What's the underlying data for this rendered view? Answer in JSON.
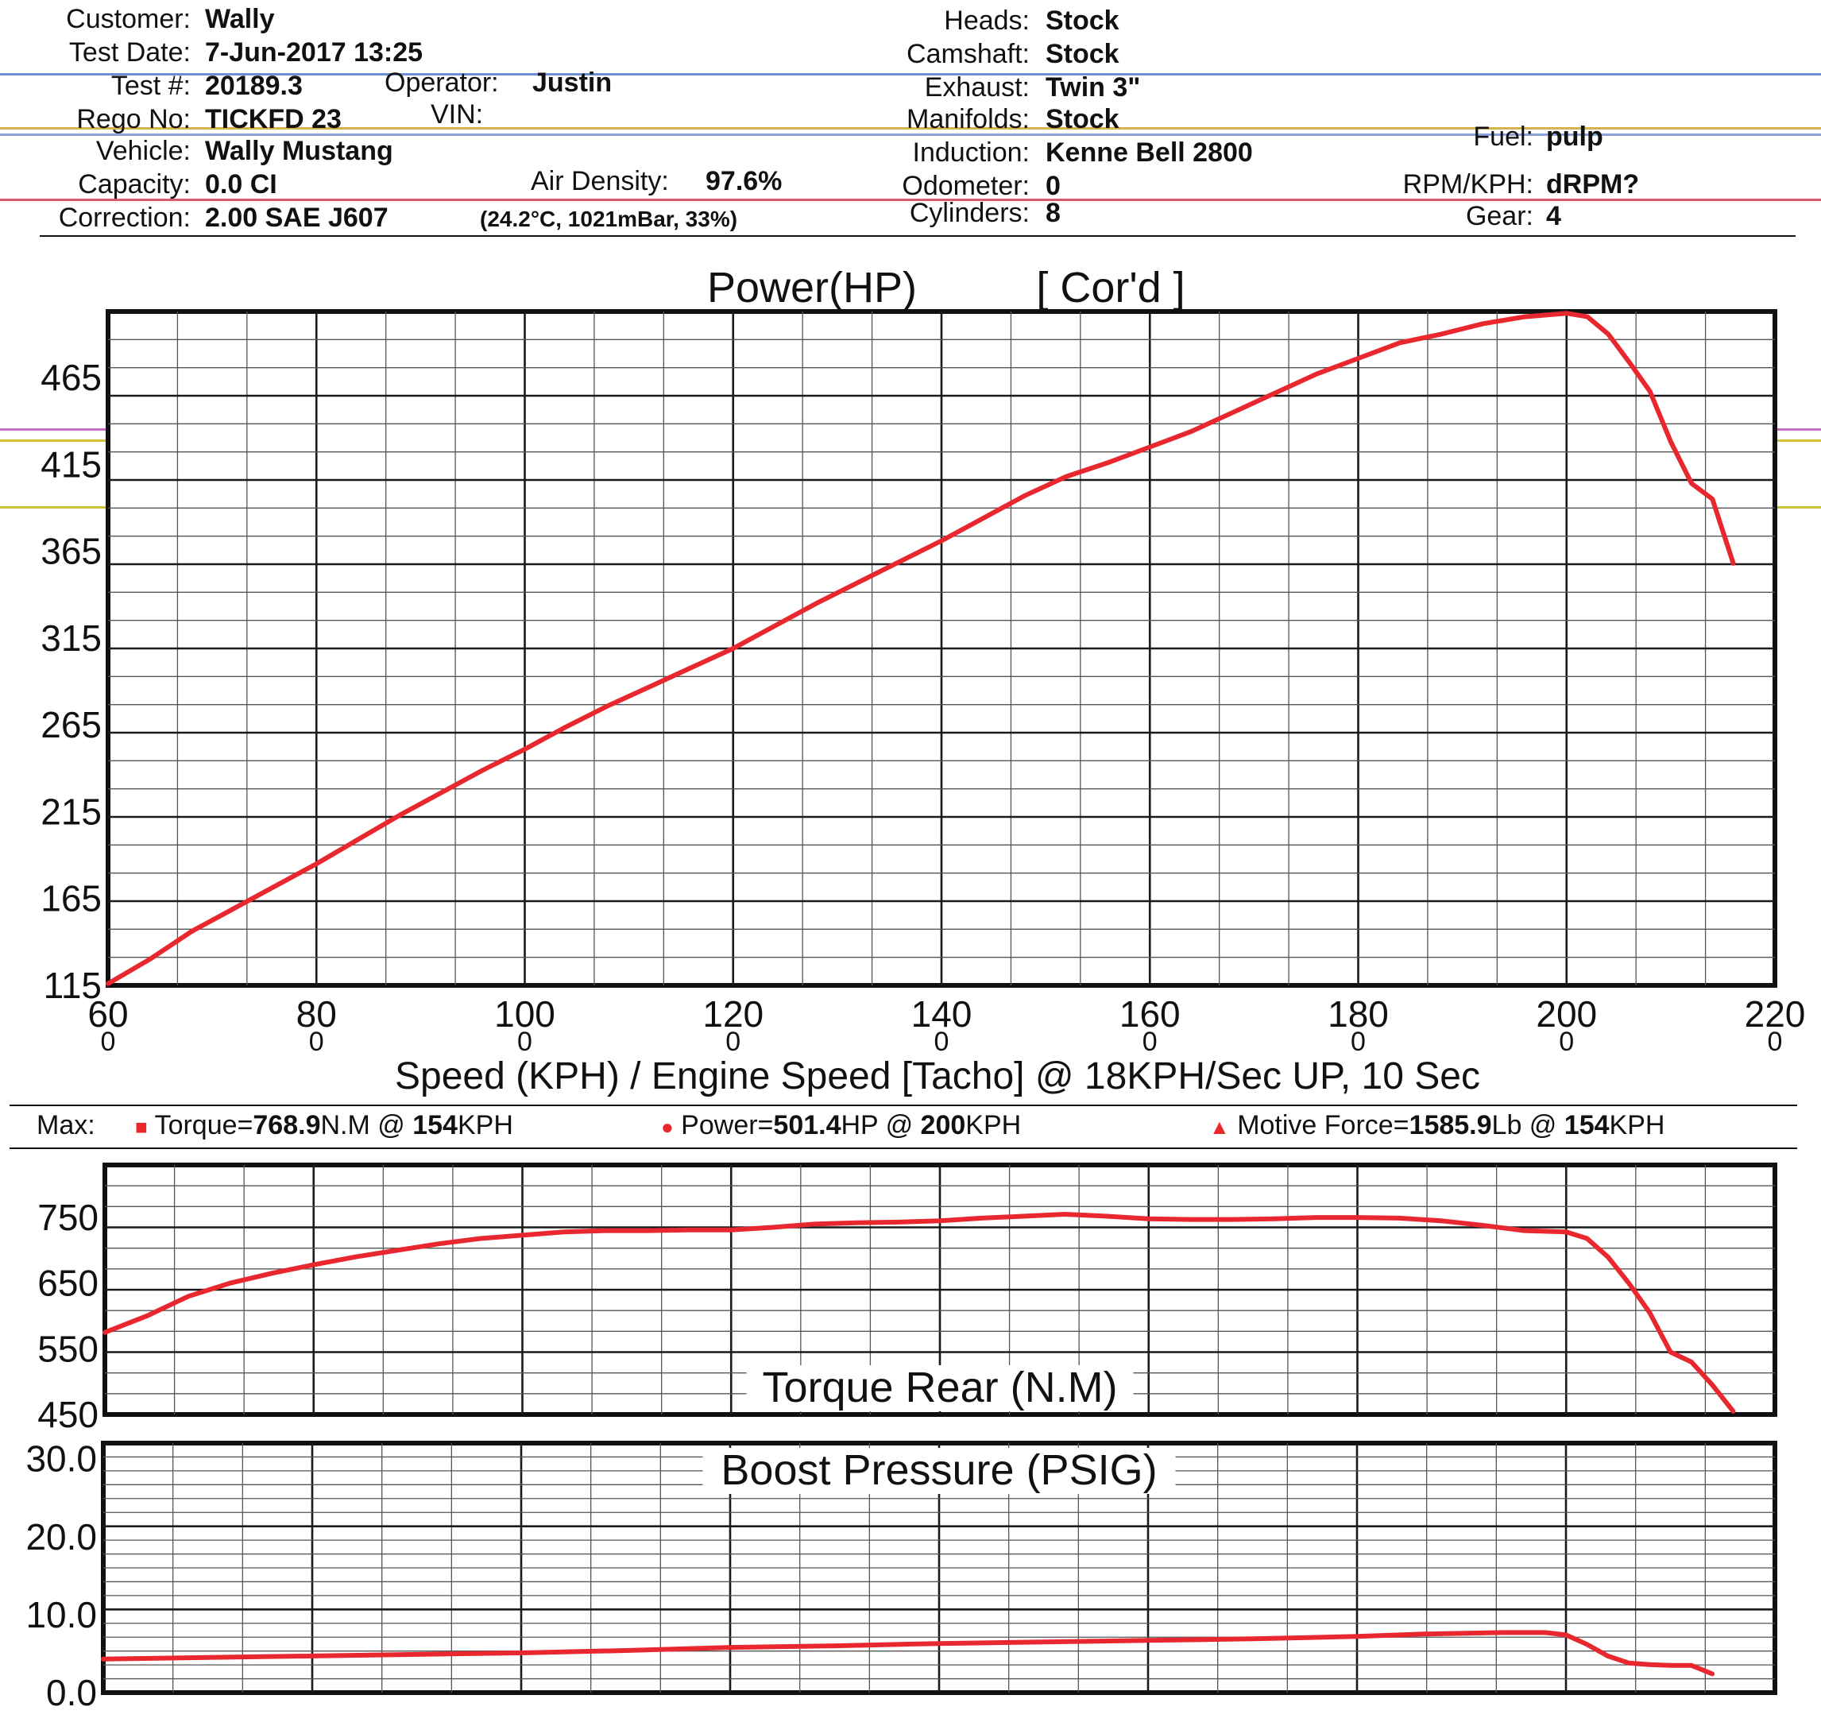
{
  "colors": {
    "curve": "#e8282e",
    "grid_major": "#1a1a1a",
    "grid_minor": "#555555",
    "frame": "#111111",
    "paper": "#ffffff"
  },
  "header": {
    "customer_label": "Customer:",
    "customer": "Wally",
    "test_date_label": "Test Date:",
    "test_date": "7-Jun-2017 13:25",
    "test_no_label": "Test #:",
    "test_no": "20189.3",
    "operator_label": "Operator:",
    "operator": "Justin",
    "rego_label": "Rego No:",
    "rego": "TICKFD 23",
    "vin_label": "VIN:",
    "vehicle_label": "Vehicle:",
    "vehicle": "Wally Mustang",
    "capacity_label": "Capacity:",
    "capacity": "0.0 CI",
    "air_density_label": "Air Density:",
    "air_density": "97.6%",
    "correction_label": "Correction:",
    "correction": "2.00 SAE J607",
    "conditions": "(24.2°C, 1021mBar, 33%)",
    "heads_label": "Heads:",
    "heads": "Stock",
    "camshaft_label": "Camshaft:",
    "camshaft": "Stock",
    "exhaust_label": "Exhaust:",
    "exhaust": "Twin 3\"",
    "manifolds_label": "Manifolds:",
    "manifolds": "Stock",
    "induction_label": "Induction:",
    "induction": "Kenne Bell 2800",
    "odometer_label": "Odometer:",
    "odometer": "0",
    "cylinders_label": "Cylinders:",
    "cylinders": "8",
    "fuel_label": "Fuel:",
    "fuel": "pulp",
    "rpm_label": "RPM/KPH:",
    "rpm": "dRPM?",
    "gear_label": "Gear:",
    "gear": "4"
  },
  "x_axis_label": "Speed (KPH) / Engine Speed [Tacho] @ 18KPH/Sec UP, 10 Sec",
  "max_line": {
    "label": "Max:",
    "torque": {
      "prefix": "Torque=",
      "value": "768.9",
      "unit": "N.M @",
      "at": "154",
      "at_unit": "KPH"
    },
    "power": {
      "prefix": "Power=",
      "value": "501.4",
      "unit": "HP @",
      "at": "200",
      "at_unit": "KPH"
    },
    "force": {
      "prefix": "Motive Force=",
      "value": "1585.9",
      "unit": "Lb @",
      "at": "154",
      "at_unit": "KPH"
    }
  },
  "chart_data": [
    {
      "type": "line",
      "title": "Power(HP)",
      "subtitle": "[ Cor'd ]",
      "xlim": [
        60,
        220
      ],
      "ylim": [
        115,
        503
      ],
      "x_ticks": [
        60,
        80,
        100,
        120,
        140,
        160,
        180,
        200,
        220
      ],
      "x_sub_ticks": [
        "0",
        "0",
        "0",
        "0",
        "0",
        "0",
        "0",
        "0",
        "0"
      ],
      "y_ticks": [
        "115",
        "165",
        "215",
        "265",
        "315",
        "365",
        "415",
        "465"
      ],
      "y_tick_values": [
        115,
        165,
        215,
        265,
        315,
        365,
        415,
        465
      ],
      "series": [
        {
          "x": [
            60,
            64,
            68,
            72,
            76,
            80,
            84,
            88,
            92,
            96,
            100,
            104,
            108,
            112,
            116,
            120,
            124,
            128,
            132,
            136,
            140,
            144,
            148,
            152,
            156,
            160,
            164,
            168,
            172,
            176,
            180,
            184,
            188,
            192,
            196,
            200,
            202,
            204,
            206,
            208,
            210,
            212,
            214,
            216
          ],
          "y": [
            116,
            130,
            146,
            159,
            172,
            185,
            199,
            213,
            226,
            239,
            251,
            264,
            276,
            287,
            298,
            309,
            322,
            335,
            347,
            359,
            371,
            384,
            397,
            408,
            416,
            425,
            434,
            445,
            456,
            467,
            476,
            485,
            490,
            496,
            500,
            502,
            500,
            490,
            474,
            457,
            428,
            404,
            395,
            358
          ]
        }
      ]
    },
    {
      "type": "line",
      "title": "Torque Rear (N.M)",
      "xlim": [
        60,
        220
      ],
      "ylim": [
        450,
        830
      ],
      "y_ticks": [
        "750",
        "650",
        "550",
        "450"
      ],
      "y_tick_values": [
        750,
        650,
        550,
        450
      ],
      "series": [
        {
          "x": [
            60,
            64,
            68,
            72,
            76,
            80,
            84,
            88,
            92,
            96,
            100,
            104,
            108,
            112,
            116,
            120,
            124,
            128,
            132,
            136,
            140,
            144,
            148,
            152,
            156,
            160,
            164,
            168,
            172,
            176,
            180,
            184,
            188,
            192,
            196,
            200,
            202,
            204,
            206,
            208,
            210,
            212,
            214,
            216
          ],
          "y": [
            575,
            600,
            630,
            650,
            665,
            678,
            690,
            700,
            710,
            718,
            723,
            728,
            730,
            730,
            731,
            731,
            735,
            740,
            742,
            743,
            745,
            749,
            752,
            755,
            752,
            748,
            747,
            747,
            748,
            750,
            750,
            749,
            745,
            738,
            730,
            728,
            718,
            690,
            650,
            605,
            545,
            530,
            495,
            455
          ]
        }
      ]
    },
    {
      "type": "line",
      "title": "Boost Pressure (PSIG)",
      "xlim": [
        60,
        220
      ],
      "ylim": [
        0,
        32
      ],
      "y_ticks": [
        "30.0",
        "20.0",
        "10.0",
        "0.0"
      ],
      "y_tick_values": [
        30,
        20,
        10,
        0
      ],
      "series": [
        {
          "x": [
            60,
            70,
            80,
            90,
            100,
            110,
            120,
            130,
            140,
            150,
            160,
            170,
            180,
            186,
            190,
            194,
            196,
            198,
            200,
            202,
            204,
            206,
            208,
            210,
            212,
            214
          ],
          "y": [
            4.3,
            4.5,
            4.7,
            4.9,
            5.1,
            5.4,
            5.8,
            6.0,
            6.3,
            6.5,
            6.7,
            6.9,
            7.2,
            7.5,
            7.6,
            7.7,
            7.7,
            7.7,
            7.4,
            6.2,
            4.7,
            3.8,
            3.6,
            3.5,
            3.5,
            2.4
          ]
        }
      ]
    }
  ]
}
